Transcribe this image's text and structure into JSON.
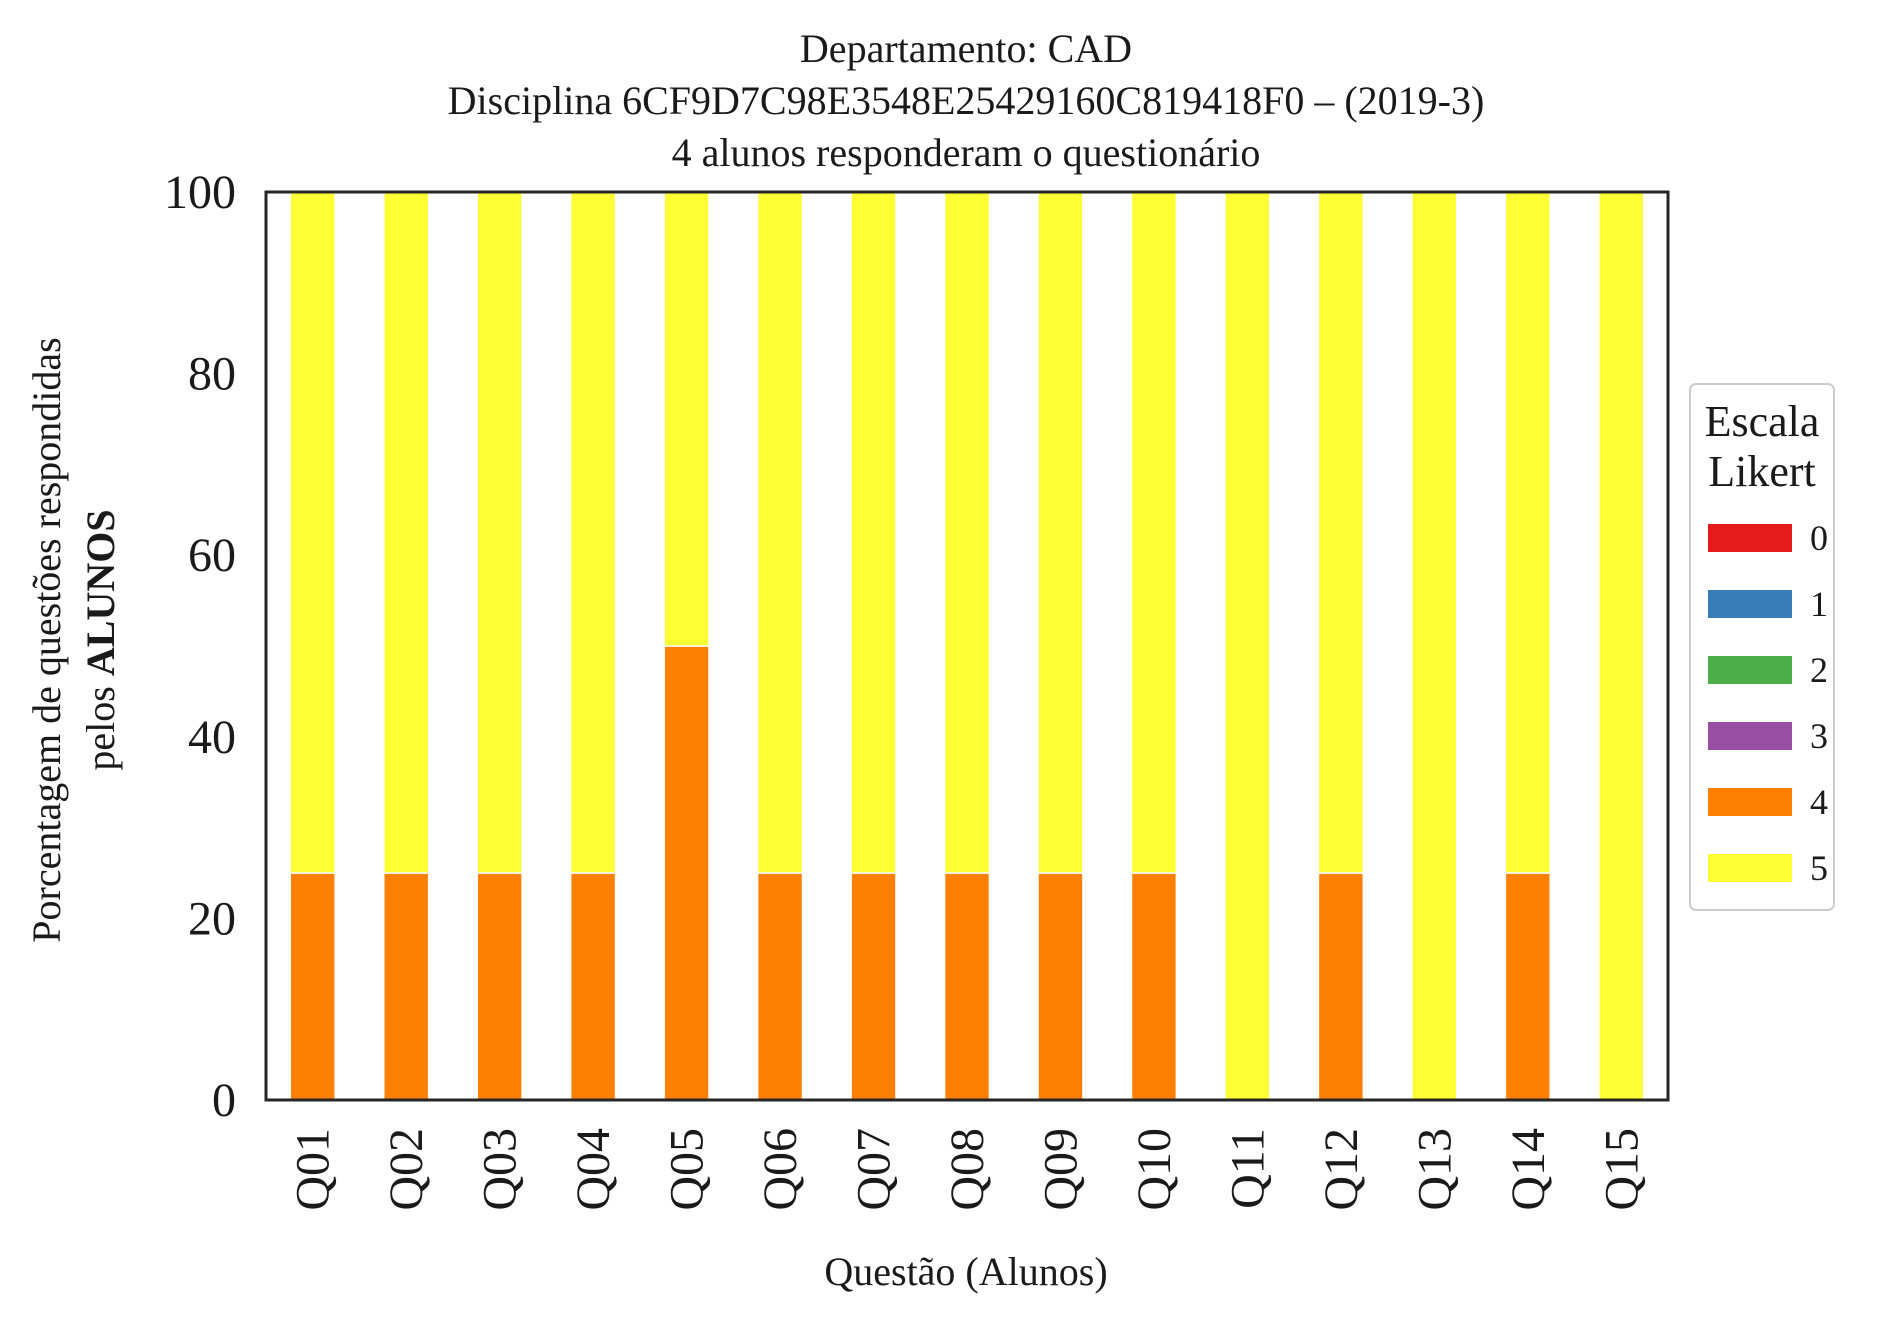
{
  "chart_data": {
    "type": "bar",
    "stacked": true,
    "title_lines": [
      "Departamento: CAD",
      "Disciplina 6CF9D7C98E3548E25429160C819418F0 – (2019-3)",
      "4 alunos responderam o questionário"
    ],
    "xlabel": "Questão (Alunos)",
    "ylabel_line1": "Porcentagem de questões respondidas",
    "ylabel_line2_prefix": "pelos ",
    "ylabel_line2_bold": "ALUNOS",
    "ylim": [
      0,
      100
    ],
    "yticks": [
      0,
      20,
      40,
      60,
      80,
      100
    ],
    "categories": [
      "Q01",
      "Q02",
      "Q03",
      "Q04",
      "Q05",
      "Q06",
      "Q07",
      "Q08",
      "Q09",
      "Q10",
      "Q11",
      "Q12",
      "Q13",
      "Q14",
      "Q15"
    ],
    "legend": {
      "title_lines": [
        "Escala",
        "Likert"
      ],
      "placement": "center-right-outside"
    },
    "series": [
      {
        "name": "0",
        "color": "#e41a1c",
        "values": [
          0,
          0,
          0,
          0,
          0,
          0,
          0,
          0,
          0,
          0,
          0,
          0,
          0,
          0,
          0
        ]
      },
      {
        "name": "1",
        "color": "#377eb8",
        "values": [
          0,
          0,
          0,
          0,
          0,
          0,
          0,
          0,
          0,
          0,
          0,
          0,
          0,
          0,
          0
        ]
      },
      {
        "name": "2",
        "color": "#4daf4a",
        "values": [
          0,
          0,
          0,
          0,
          0,
          0,
          0,
          0,
          0,
          0,
          0,
          0,
          0,
          0,
          0
        ]
      },
      {
        "name": "3",
        "color": "#984ea3",
        "values": [
          0,
          0,
          0,
          0,
          0,
          0,
          0,
          0,
          0,
          0,
          0,
          0,
          0,
          0,
          0
        ]
      },
      {
        "name": "4",
        "color": "#ff7f00",
        "values": [
          25,
          25,
          25,
          25,
          50,
          25,
          25,
          25,
          25,
          25,
          0,
          25,
          0,
          25,
          0
        ]
      },
      {
        "name": "5",
        "color": "#ffff33",
        "values": [
          75,
          75,
          75,
          75,
          50,
          75,
          75,
          75,
          75,
          75,
          100,
          75,
          100,
          75,
          100
        ]
      }
    ]
  }
}
